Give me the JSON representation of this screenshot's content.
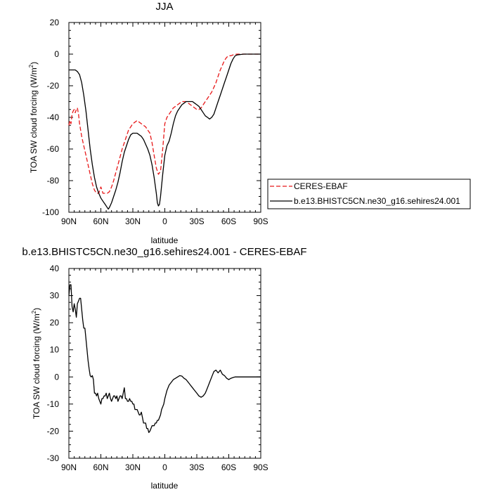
{
  "chart_data": [
    {
      "type": "line",
      "title": "JJA",
      "xlabel": "latitude",
      "ylabel_main": "TOA SW cloud forcing (W/m",
      "ylabel_sup": "2",
      "ylabel_tail": ")",
      "xlim": [
        90,
        -90
      ],
      "ylim": [
        -100,
        20
      ],
      "xticks": [
        90,
        60,
        30,
        0,
        -30,
        -60,
        -90
      ],
      "xtick_labels": [
        "90N",
        "60N",
        "30N",
        "0",
        "30S",
        "60S",
        "90S"
      ],
      "yticks": [
        -100,
        -80,
        -60,
        -40,
        -20,
        0,
        20
      ],
      "ytick_labels": [
        "-100",
        "-80",
        "-60",
        "-40",
        "-20",
        "0",
        "20"
      ],
      "legend_placement": "right-middle",
      "series": [
        {
          "name": "CERES-EBAF",
          "color": "#e8191a",
          "dash": "dashed",
          "x": [
            90,
            89,
            88,
            87,
            86,
            85,
            84,
            83,
            82,
            81,
            80,
            78,
            76,
            74,
            72,
            70,
            68,
            66,
            64,
            62,
            61,
            60,
            59,
            58,
            56,
            54,
            52,
            50,
            48,
            46,
            44,
            42,
            40,
            38,
            36,
            34,
            32,
            30,
            28,
            26,
            24,
            22,
            20,
            18,
            16,
            14,
            12,
            10,
            8,
            6,
            4,
            2,
            0,
            -2,
            -4,
            -6,
            -8,
            -10,
            -12,
            -14,
            -16,
            -18,
            -20,
            -22,
            -24,
            -26,
            -28,
            -30,
            -32,
            -34,
            -36,
            -38,
            -40,
            -42,
            -44,
            -46,
            -48,
            -50,
            -52,
            -54,
            -56,
            -58,
            -60,
            -62,
            -64,
            -66,
            -68,
            -70,
            -72,
            -74,
            -76,
            -78,
            -80,
            -82,
            -84,
            -86,
            -88,
            -90
          ],
          "y": [
            -45,
            -42,
            -44,
            -38,
            -36,
            -35,
            -37,
            -35,
            -34,
            -38,
            -44,
            -52,
            -58,
            -64,
            -70,
            -76,
            -82,
            -86,
            -88,
            -88,
            -86,
            -84,
            -86,
            -88,
            -88,
            -88,
            -87,
            -84,
            -80,
            -75,
            -70,
            -65,
            -60,
            -56,
            -52,
            -48,
            -46,
            -44,
            -43,
            -42,
            -43,
            -44,
            -45,
            -46,
            -48,
            -50,
            -56,
            -64,
            -72,
            -76,
            -74,
            -60,
            -44,
            -40,
            -38,
            -36,
            -34,
            -33,
            -32,
            -31,
            -30,
            -30,
            -30,
            -31,
            -32,
            -33,
            -34,
            -35,
            -35,
            -34,
            -32,
            -30,
            -28,
            -26,
            -24,
            -21,
            -18,
            -14,
            -10,
            -7,
            -4,
            -2,
            -1,
            -1,
            -0.5,
            -0.2,
            0,
            0,
            0,
            0,
            0,
            0,
            0,
            0,
            0,
            0,
            0,
            0
          ]
        },
        {
          "name": "b.e13.BHISTC5CN.ne30_g16.sehires24.001",
          "color": "#000000",
          "dash": "solid",
          "x": [
            90,
            88,
            86,
            84,
            82,
            80,
            78,
            76,
            74,
            72,
            70,
            68,
            66,
            64,
            62,
            60,
            58,
            56,
            54,
            53,
            52,
            50,
            48,
            46,
            44,
            42,
            40,
            38,
            36,
            34,
            32,
            30,
            28,
            26,
            24,
            22,
            20,
            18,
            16,
            14,
            12,
            10,
            8,
            7,
            6,
            5,
            4,
            2,
            0,
            -2,
            -4,
            -6,
            -8,
            -10,
            -12,
            -14,
            -16,
            -18,
            -20,
            -22,
            -24,
            -26,
            -28,
            -30,
            -32,
            -34,
            -36,
            -38,
            -40,
            -42,
            -44,
            -46,
            -48,
            -50,
            -52,
            -54,
            -56,
            -58,
            -60,
            -62,
            -64,
            -66,
            -68,
            -70,
            -72,
            -74,
            -76,
            -78,
            -80,
            -82,
            -84,
            -86,
            -88,
            -90
          ],
          "y": [
            -10,
            -10,
            -10,
            -10,
            -11,
            -13,
            -18,
            -26,
            -36,
            -48,
            -60,
            -70,
            -78,
            -84,
            -88,
            -91,
            -93,
            -95,
            -97,
            -98,
            -97,
            -94,
            -90,
            -86,
            -81,
            -75,
            -68,
            -62,
            -58,
            -54,
            -51,
            -50,
            -50,
            -50,
            -51,
            -52,
            -54,
            -57,
            -60,
            -64,
            -70,
            -78,
            -88,
            -94,
            -96,
            -95,
            -90,
            -76,
            -64,
            -58,
            -55,
            -50,
            -44,
            -39,
            -36,
            -34,
            -32,
            -31,
            -30,
            -30,
            -30,
            -30,
            -31,
            -32,
            -33,
            -35,
            -37,
            -39,
            -40,
            -41,
            -40,
            -38,
            -34,
            -30,
            -26,
            -22,
            -18,
            -14,
            -10,
            -6,
            -3,
            -1,
            -0.5,
            -0.3,
            -0.2,
            0,
            0,
            0,
            0,
            0,
            0,
            0,
            0,
            0
          ]
        }
      ]
    },
    {
      "type": "line",
      "title": "b.e13.BHISTC5CN.ne30_g16.sehires24.001 - CERES-EBAF",
      "xlabel": "latitude",
      "ylabel_main": "TOA SW cloud forcing (W/m",
      "ylabel_sup": "2",
      "ylabel_tail": ")",
      "xlim": [
        90,
        -90
      ],
      "ylim": [
        -30,
        40
      ],
      "xticks": [
        90,
        60,
        30,
        0,
        -30,
        -60,
        -90
      ],
      "xtick_labels": [
        "90N",
        "60N",
        "30N",
        "0",
        "30S",
        "60S",
        "90S"
      ],
      "yticks": [
        -30,
        -20,
        -10,
        0,
        10,
        20,
        30,
        40
      ],
      "ytick_labels": [
        "-30",
        "-20",
        "-10",
        "0",
        "10",
        "20",
        "30",
        "40"
      ],
      "series": [
        {
          "color": "#000000",
          "dash": "solid",
          "x": [
            90,
            89,
            88,
            87,
            86,
            85,
            84,
            83,
            82,
            81,
            80,
            79,
            78,
            77,
            76,
            75,
            74,
            73,
            72,
            71,
            70,
            69,
            68,
            67,
            66,
            65,
            64,
            63,
            62,
            61,
            60,
            59,
            58,
            57,
            56,
            55,
            54,
            53,
            52,
            51,
            50,
            49,
            48,
            47,
            46,
            45,
            44,
            43,
            42,
            41,
            40,
            39,
            38,
            37,
            36,
            35,
            34,
            33,
            32,
            31,
            30,
            29,
            28,
            27,
            26,
            25,
            24,
            23,
            22,
            21,
            20,
            19,
            18,
            17,
            16,
            15,
            14,
            13,
            12,
            11,
            10,
            9,
            8,
            7,
            6,
            5,
            4,
            3,
            2,
            1,
            0,
            -2,
            -4,
            -6,
            -8,
            -10,
            -12,
            -14,
            -16,
            -18,
            -20,
            -22,
            -24,
            -26,
            -28,
            -30,
            -32,
            -34,
            -36,
            -38,
            -40,
            -42,
            -44,
            -46,
            -48,
            -50,
            -52,
            -54,
            -56,
            -58,
            -60,
            -62,
            -64,
            -66,
            -68,
            -70,
            -72,
            -74,
            -76,
            -78,
            -80,
            -82,
            -84,
            -86,
            -88,
            -90
          ],
          "y": [
            30,
            34,
            34,
            26,
            24,
            27,
            25,
            22,
            27,
            28,
            29,
            29,
            25,
            21,
            18,
            18,
            14,
            10,
            6,
            3,
            0.5,
            0,
            0.5,
            -1,
            -6,
            -6,
            -7,
            -6,
            -8,
            -9,
            -10,
            -8,
            -8,
            -7,
            -7,
            -6,
            -8,
            -7,
            -6,
            -8,
            -9,
            -8,
            -7,
            -7,
            -8,
            -7,
            -9,
            -8,
            -7,
            -7,
            -8,
            -6,
            -4,
            -8,
            -8,
            -9,
            -9,
            -8,
            -9,
            -9,
            -10,
            -10,
            -12,
            -12,
            -12,
            -13,
            -14,
            -14,
            -13,
            -15,
            -17,
            -17,
            -17,
            -19,
            -19,
            -20.5,
            -20,
            -19,
            -18,
            -18,
            -18,
            -17,
            -17,
            -16,
            -16,
            -15,
            -14,
            -12,
            -11,
            -10,
            -8,
            -5,
            -3,
            -2,
            -1,
            -0.5,
            0,
            0.5,
            0.3,
            -0.5,
            -1,
            -2,
            -3,
            -4,
            -5,
            -6,
            -7,
            -7.5,
            -7,
            -6,
            -4,
            -2,
            0,
            2,
            2.5,
            1.5,
            2.5,
            1,
            0.5,
            -0.5,
            -1,
            -0.5,
            -0.2,
            0,
            0,
            0,
            0,
            0,
            0,
            0,
            0,
            0,
            0,
            0,
            0,
            0
          ]
        }
      ]
    }
  ]
}
